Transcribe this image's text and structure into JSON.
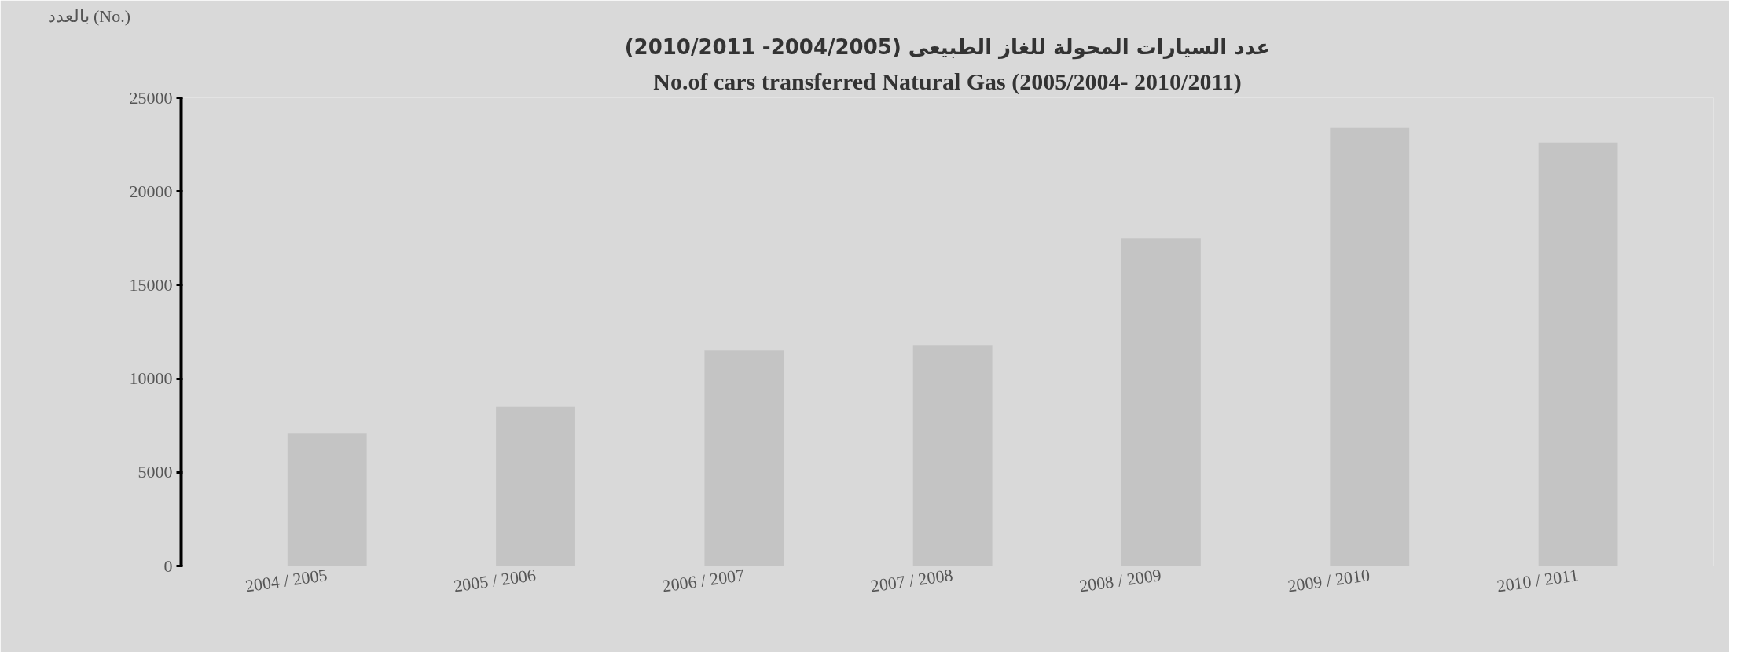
{
  "chart_data": {
    "type": "bar",
    "title": "عدد السيارات المحولة للغاز الطبيعى (2004/2005- 2010/2011)",
    "subtitle": "No.of cars transferred Natural Gas (2005/2004- 2010/2011)",
    "ylabel": "بالعدد (No.)",
    "categories": [
      "2004 / 2005",
      "2005 / 2006",
      "2006 / 2007",
      "2007 / 2008",
      "2008 / 2009",
      "2009 / 2010",
      "2010 / 2011"
    ],
    "values": [
      7100,
      8500,
      11500,
      11800,
      17500,
      23400,
      22600
    ],
    "color": "#c4c4c4",
    "ylim": [
      0,
      25000
    ],
    "yticks": [
      0,
      5000,
      10000,
      15000,
      20000,
      25000
    ],
    "grid": false
  }
}
